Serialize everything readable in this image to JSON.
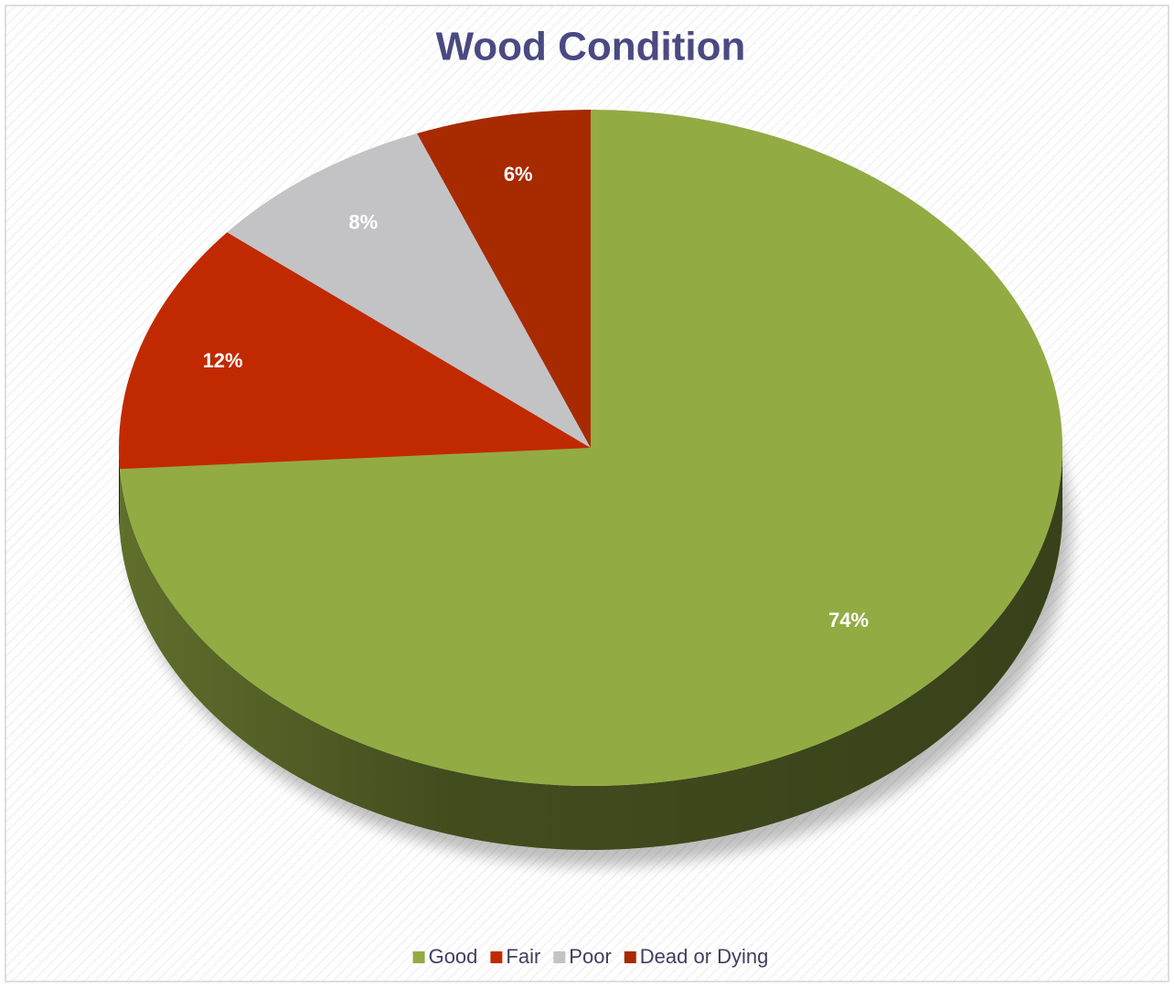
{
  "chart_data": {
    "type": "pie",
    "title": "Wood Condition",
    "categories": [
      "Good",
      "Fair",
      "Poor",
      "Dead or Dying"
    ],
    "values": [
      74,
      12,
      8,
      6
    ],
    "value_labels": [
      "74%",
      "12%",
      "8%",
      "6%"
    ],
    "colors": [
      "#93ab43",
      "#c12a00",
      "#c3c3c6",
      "#a82a00"
    ],
    "legend": "bottom"
  }
}
